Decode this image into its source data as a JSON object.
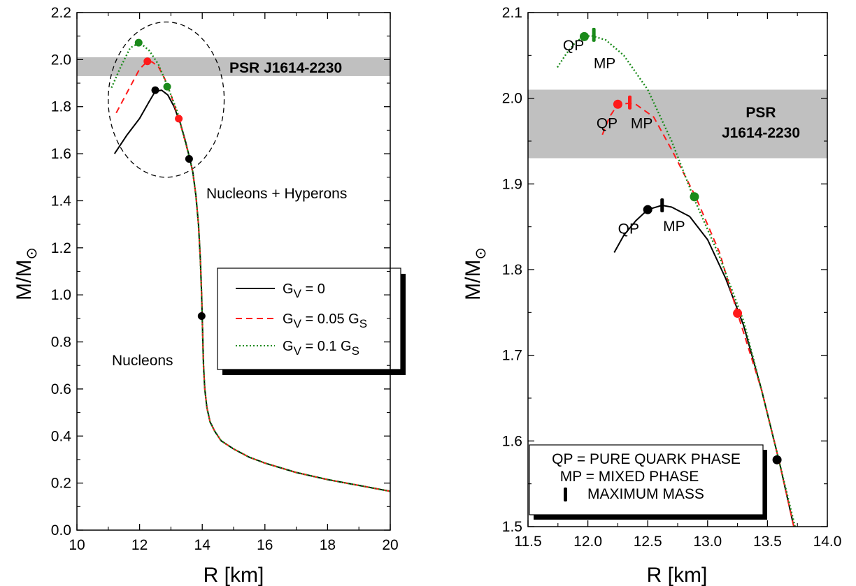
{
  "chart_data": [
    {
      "type": "line",
      "xlabel": "R [km]",
      "ylabel_main": "M/M",
      "ylabel_sub": "⊙",
      "xlim": [
        10,
        20
      ],
      "ylim": [
        0.0,
        2.2
      ],
      "x_ticks": [
        "10",
        "12",
        "14",
        "16",
        "18",
        "20"
      ],
      "y_ticks": [
        "0.0",
        "0.2",
        "0.4",
        "0.6",
        "0.8",
        "1.0",
        "1.2",
        "1.4",
        "1.6",
        "1.8",
        "2.0",
        "2.2"
      ],
      "band": {
        "label": "PSR J1614-2230",
        "ymin": 1.93,
        "ymax": 2.01,
        "color": "#c0c0c0"
      },
      "annotations": {
        "hyperons": "Nucleons + Hyperons",
        "nucleons": "Nucleons"
      },
      "legend": {
        "items": [
          {
            "main": "G",
            "sub": "V",
            "rest": " = 0",
            "sub2": ""
          },
          {
            "main": "G",
            "sub": "V",
            "rest": " = 0.05 G",
            "sub2": "S"
          },
          {
            "main": "G",
            "sub": "V",
            "rest": " = 0.1 G",
            "sub2": "S"
          }
        ]
      },
      "series": [
        {
          "color": "#000000",
          "dash": "",
          "x": [
            20.0,
            19.0,
            18.0,
            17.0,
            16.0,
            15.5,
            15.0,
            14.6,
            14.4,
            14.25,
            14.15,
            14.08,
            14.04,
            14.0,
            13.98,
            13.94,
            13.88,
            13.8,
            13.7,
            13.6,
            13.45,
            13.3,
            13.1,
            12.9,
            12.7,
            12.5,
            12.3,
            12.0,
            11.6,
            11.2
          ],
          "y": [
            0.165,
            0.19,
            0.215,
            0.245,
            0.285,
            0.31,
            0.345,
            0.38,
            0.42,
            0.46,
            0.52,
            0.6,
            0.7,
            0.9,
            1.0,
            1.15,
            1.3,
            1.42,
            1.52,
            1.58,
            1.66,
            1.73,
            1.8,
            1.85,
            1.87,
            1.865,
            1.82,
            1.75,
            1.68,
            1.6
          ]
        },
        {
          "color": "#ff1a1a",
          "dash": "9,6",
          "x": [
            20.0,
            19.0,
            18.0,
            17.0,
            16.0,
            15.5,
            15.0,
            14.6,
            14.4,
            14.25,
            14.15,
            14.08,
            14.04,
            14.0,
            13.98,
            13.94,
            13.88,
            13.8,
            13.7,
            13.6,
            13.4,
            13.25,
            13.0,
            12.8,
            12.6,
            12.4,
            12.25,
            12.0,
            11.6,
            11.2
          ],
          "y": [
            0.165,
            0.19,
            0.215,
            0.245,
            0.285,
            0.31,
            0.345,
            0.38,
            0.42,
            0.46,
            0.52,
            0.6,
            0.7,
            0.9,
            1.0,
            1.15,
            1.3,
            1.42,
            1.52,
            1.58,
            1.68,
            1.75,
            1.85,
            1.92,
            1.97,
            1.99,
            1.993,
            1.96,
            1.86,
            1.76
          ]
        },
        {
          "color": "#1a8a1a",
          "dash": "2,3",
          "x": [
            20.0,
            19.0,
            18.0,
            17.0,
            16.0,
            15.5,
            15.0,
            14.6,
            14.4,
            14.25,
            14.15,
            14.08,
            14.04,
            14.0,
            13.98,
            13.94,
            13.88,
            13.8,
            13.7,
            13.6,
            13.4,
            13.2,
            12.9,
            12.6,
            12.3,
            12.0,
            11.7,
            11.4,
            11.1
          ],
          "y": [
            0.165,
            0.19,
            0.215,
            0.245,
            0.285,
            0.31,
            0.345,
            0.38,
            0.42,
            0.46,
            0.52,
            0.6,
            0.7,
            0.9,
            1.0,
            1.15,
            1.3,
            1.42,
            1.52,
            1.58,
            1.68,
            1.78,
            1.885,
            1.98,
            2.04,
            2.072,
            2.05,
            1.97,
            1.88
          ]
        }
      ],
      "markers": [
        {
          "x": 12.5,
          "y": 1.87,
          "color": "#000000"
        },
        {
          "x": 13.58,
          "y": 1.578,
          "color": "#000000"
        },
        {
          "x": 13.98,
          "y": 0.91,
          "color": "#000000"
        },
        {
          "x": 12.25,
          "y": 1.993,
          "color": "#ff1a1a"
        },
        {
          "x": 13.25,
          "y": 1.749,
          "color": "#ff1a1a"
        },
        {
          "x": 11.97,
          "y": 2.072,
          "color": "#1a8a1a"
        },
        {
          "x": 12.88,
          "y": 1.885,
          "color": "#1a8a1a"
        }
      ],
      "ellipse": {
        "cx": 12.85,
        "cy": 1.83,
        "rx": 1.85,
        "ry": 0.33
      }
    },
    {
      "type": "line",
      "xlabel": "R [km]",
      "ylabel_main": "M/M",
      "ylabel_sub": "⊙",
      "xlim": [
        11.5,
        14.0
      ],
      "ylim": [
        1.5,
        2.1
      ],
      "x_ticks": [
        "11.5",
        "12.0",
        "12.5",
        "13.0",
        "13.5",
        "14.0"
      ],
      "y_ticks": [
        "1.5",
        "1.6",
        "1.7",
        "1.8",
        "1.9",
        "2.0",
        "2.1"
      ],
      "band": {
        "label_line1": "PSR",
        "label_line2": "J1614-2230",
        "ymin": 1.93,
        "ymax": 2.01,
        "color": "#c0c0c0"
      },
      "curve_labels": [
        {
          "text": "QP",
          "x": 11.88,
          "y": 2.056
        },
        {
          "text": "MP",
          "x": 12.14,
          "y": 2.035
        },
        {
          "text": "QP",
          "x": 12.16,
          "y": 1.965
        },
        {
          "text": "MP",
          "x": 12.45,
          "y": 1.965
        },
        {
          "text": "QP",
          "x": 12.34,
          "y": 1.842
        },
        {
          "text": "MP",
          "x": 12.72,
          "y": 1.845
        }
      ],
      "legend": {
        "line1": "QP = PURE QUARK PHASE",
        "line2": "MP = MIXED PHASE",
        "line3": "MAXIMUM MASS"
      },
      "series": [
        {
          "color": "#000000",
          "dash": "",
          "x": [
            13.72,
            13.6,
            13.45,
            13.3,
            13.15,
            13.0,
            12.85,
            12.7,
            12.62,
            12.5,
            12.4,
            12.3,
            12.22
          ],
          "y": [
            1.5,
            1.575,
            1.66,
            1.735,
            1.79,
            1.835,
            1.862,
            1.873,
            1.875,
            1.87,
            1.857,
            1.84,
            1.82
          ]
        },
        {
          "color": "#ff1a1a",
          "dash": "9,6",
          "x": [
            13.72,
            13.6,
            13.45,
            13.25,
            13.1,
            12.9,
            12.7,
            12.55,
            12.4,
            12.34,
            12.25,
            12.18,
            12.12
          ],
          "y": [
            1.5,
            1.575,
            1.66,
            1.749,
            1.82,
            1.885,
            1.94,
            1.978,
            1.993,
            1.994,
            1.993,
            1.978,
            1.957
          ]
        },
        {
          "color": "#1a8a1a",
          "dash": "2,3",
          "x": [
            13.73,
            13.6,
            13.45,
            13.3,
            13.1,
            12.88,
            12.7,
            12.5,
            12.3,
            12.15,
            12.03,
            11.97,
            11.9,
            11.82,
            11.74
          ],
          "y": [
            1.5,
            1.575,
            1.66,
            1.74,
            1.815,
            1.885,
            1.95,
            2.01,
            2.05,
            2.068,
            2.073,
            2.072,
            2.066,
            2.052,
            2.035
          ]
        }
      ],
      "markers": [
        {
          "x": 12.5,
          "y": 1.87,
          "color": "#000000"
        },
        {
          "x": 13.58,
          "y": 1.578,
          "color": "#000000"
        },
        {
          "x": 12.25,
          "y": 1.993,
          "color": "#ff1a1a"
        },
        {
          "x": 13.25,
          "y": 1.749,
          "color": "#ff1a1a"
        },
        {
          "x": 11.97,
          "y": 2.072,
          "color": "#1a8a1a"
        },
        {
          "x": 12.89,
          "y": 1.885,
          "color": "#1a8a1a"
        }
      ],
      "maxmass_ticks": [
        {
          "x": 12.62,
          "y": 1.875,
          "color": "#000000"
        },
        {
          "x": 12.35,
          "y": 1.995,
          "color": "#ff1a1a"
        },
        {
          "x": 12.05,
          "y": 2.074,
          "color": "#1a8a1a"
        }
      ]
    }
  ]
}
